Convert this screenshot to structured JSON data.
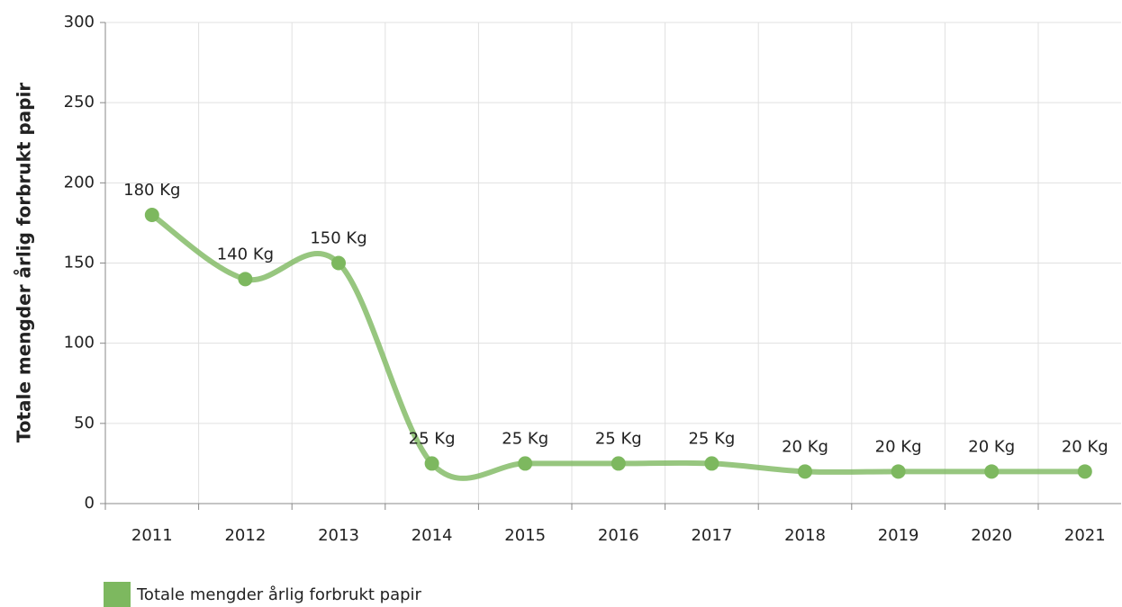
{
  "chart_data": {
    "type": "line",
    "y_axis_label": "Totale mengder årlig forbrukt papir",
    "categories": [
      "2011",
      "2012",
      "2013",
      "2014",
      "2015",
      "2016",
      "2017",
      "2018",
      "2019",
      "2020",
      "2021"
    ],
    "series": [
      {
        "name": "Totale mengder årlig forbrukt papir",
        "color": "#7db85f",
        "values": [
          180,
          140,
          150,
          25,
          25,
          25,
          25,
          20,
          20,
          20,
          20
        ],
        "value_labels": [
          "180 Kg",
          "140 Kg",
          "150 Kg",
          "25 Kg",
          "25 Kg",
          "25 Kg",
          "25 Kg",
          "20 Kg",
          "20 Kg",
          "20 Kg",
          "20 Kg"
        ]
      }
    ],
    "ylim": [
      0,
      300
    ],
    "yticks": [
      0,
      50,
      100,
      150,
      200,
      250,
      300
    ],
    "grid": true,
    "legend": "bottom-left"
  }
}
